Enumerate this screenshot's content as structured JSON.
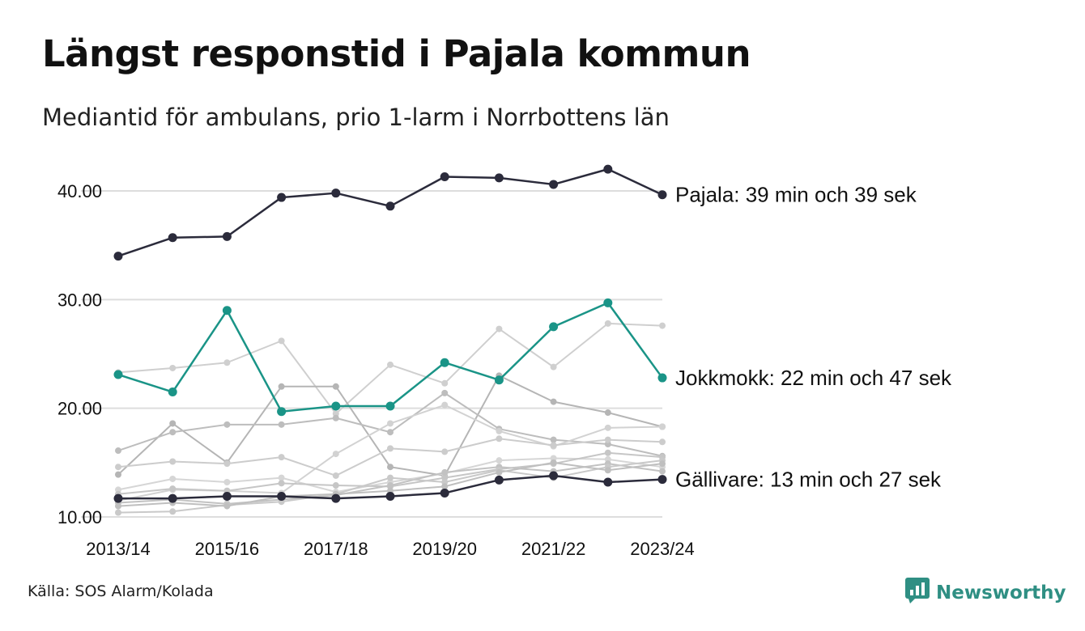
{
  "title": "Längst responstid i Pajala kommun",
  "subtitle": "Mediantid för ambulans, prio 1-larm i Norrbottens län",
  "source": "Källa: SOS Alarm/Kolada",
  "brand": {
    "name": "Newsworthy",
    "icon": "newsworthy-logo-icon",
    "color": "#2f8f83"
  },
  "colors": {
    "highlight_dark": "#2b2b3b",
    "highlight_teal": "#1a9487",
    "grid": "#dddddd"
  },
  "chart_data": {
    "type": "line",
    "x": [
      "2013/14",
      "2014/15",
      "2015/16",
      "2016/17",
      "2017/18",
      "2018/19",
      "2019/20",
      "2020/21",
      "2021/22",
      "2022/23",
      "2023/24"
    ],
    "x_tick_labels": [
      "2013/14",
      "2015/16",
      "2017/18",
      "2019/20",
      "2021/22",
      "2023/24"
    ],
    "y_ticks": [
      "10.00",
      "20.00",
      "30.00",
      "40.00"
    ],
    "ylim": [
      10,
      42
    ],
    "grid": "horizontal",
    "highlighted": [
      {
        "label": "Pajala: 39 min och 39 sek",
        "color": "#2b2b3b",
        "values": [
          34.0,
          35.7,
          35.8,
          39.4,
          39.8,
          38.6,
          41.3,
          41.2,
          40.6,
          42.0,
          39.65
        ]
      },
      {
        "label": "Jokkmokk: 22 min och 47 sek",
        "color": "#1a9487",
        "values": [
          23.1,
          21.5,
          29.0,
          19.7,
          20.2,
          20.2,
          24.2,
          22.6,
          27.5,
          29.7,
          22.8
        ]
      },
      {
        "label": "Gällivare: 13 min och 27 sek",
        "color": "#2b2b3b",
        "values": [
          11.7,
          11.7,
          11.9,
          11.9,
          11.7,
          11.9,
          12.2,
          13.4,
          13.8,
          13.2,
          13.45
        ]
      }
    ],
    "others": [
      {
        "values": [
          23.3,
          23.7,
          24.2,
          26.2,
          19.5,
          24.0,
          22.3,
          27.3,
          23.8,
          27.8,
          27.6
        ]
      },
      {
        "values": [
          13.9,
          18.6,
          15.0,
          22.0,
          22.0,
          14.6,
          13.8,
          23.0,
          20.6,
          19.6,
          18.3
        ]
      },
      {
        "values": [
          16.1,
          17.8,
          18.5,
          18.5,
          19.1,
          17.8,
          21.4,
          18.1,
          17.1,
          16.7,
          15.6
        ]
      },
      {
        "values": [
          11.5,
          12.5,
          12.4,
          12.2,
          15.8,
          18.6,
          20.3,
          17.9,
          16.5,
          18.2,
          18.3
        ]
      },
      {
        "values": [
          14.6,
          15.1,
          14.9,
          15.5,
          13.8,
          16.3,
          16.0,
          17.2,
          16.6,
          17.1,
          16.9
        ]
      },
      {
        "values": [
          12.5,
          13.5,
          13.2,
          13.6,
          12.3,
          13.2,
          14.0,
          15.2,
          15.4,
          15.3,
          14.6
        ]
      },
      {
        "values": [
          12.1,
          12.6,
          12.4,
          13.1,
          12.9,
          12.8,
          13.6,
          14.4,
          14.9,
          15.9,
          15.5
        ]
      },
      {
        "values": [
          11.3,
          11.6,
          11.2,
          11.6,
          12.0,
          12.9,
          14.1,
          14.6,
          14.2,
          14.9,
          14.2
        ]
      },
      {
        "values": [
          10.4,
          10.5,
          11.1,
          11.4,
          12.1,
          13.6,
          13.2,
          14.3,
          13.6,
          14.6,
          15.2
        ]
      },
      {
        "values": [
          11.0,
          11.3,
          11.0,
          11.9,
          12.1,
          12.4,
          12.8,
          14.1,
          15.0,
          14.3,
          14.9
        ]
      }
    ]
  }
}
